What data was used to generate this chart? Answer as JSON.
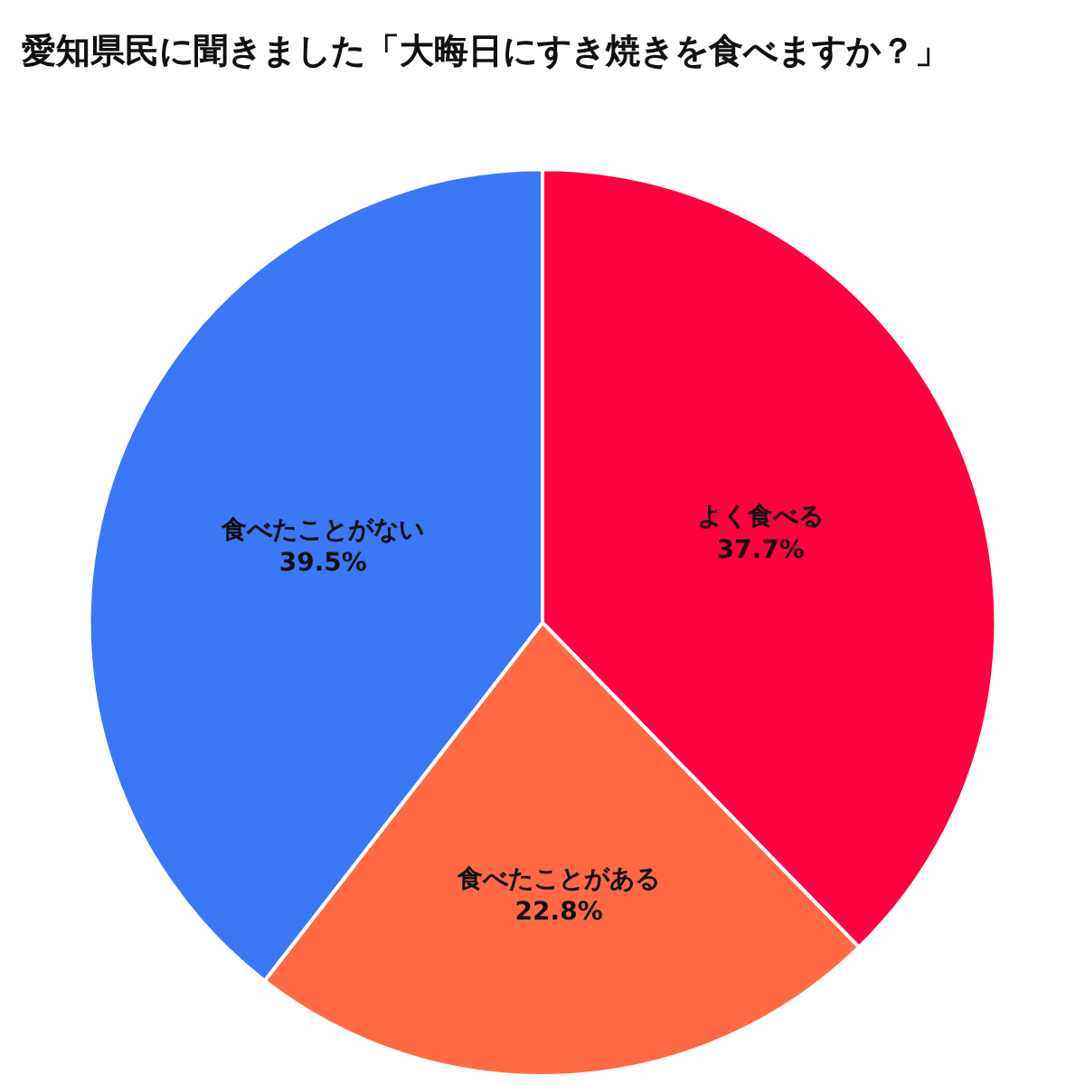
{
  "chart_data": {
    "type": "pie",
    "title": "愛知県民に聞きました「大晦日にすき焼きを食べますか？」",
    "categories": [
      "よく食べる",
      "食べたことがある",
      "食べたことがない"
    ],
    "values": [
      37.7,
      22.8,
      39.5
    ],
    "value_labels": [
      "37.7%",
      "22.8%",
      "39.5%"
    ],
    "colors": [
      "#ff0040",
      "#ff6a45",
      "#3b78f5"
    ],
    "legend": false
  }
}
